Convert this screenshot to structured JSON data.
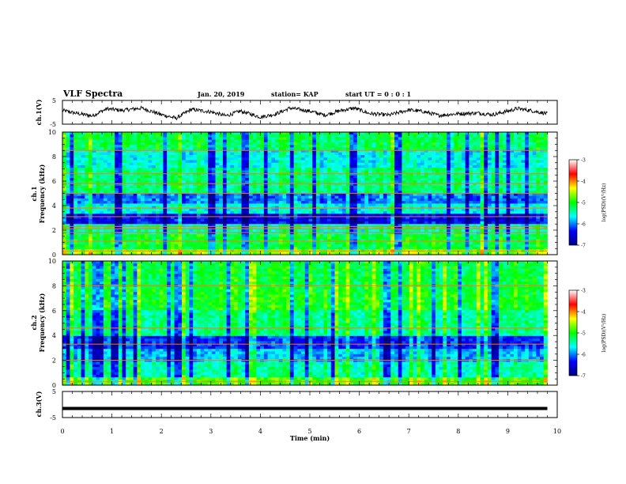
{
  "header": {
    "title": "VLF Spectra",
    "date": "Jan. 20, 2019",
    "station": "station= KAP",
    "start": "start UT =  0 : 0 : 1"
  },
  "chart_data": [
    {
      "type": "line",
      "name": "ch1-waveform",
      "ylabel": "ch.1(V)",
      "ylim": [
        -5,
        5
      ],
      "yticks": [
        "5",
        "-5"
      ],
      "xlim": [
        0,
        10
      ],
      "color": "#000000",
      "trend": [
        [
          0.0,
          0.8
        ],
        [
          0.3,
          -0.5
        ],
        [
          0.6,
          -1.5
        ],
        [
          0.9,
          1.5
        ],
        [
          1.2,
          0.8
        ],
        [
          1.6,
          1.8
        ],
        [
          2.0,
          -1.0
        ],
        [
          2.3,
          -2.5
        ],
        [
          2.6,
          1.2
        ],
        [
          3.0,
          0.2
        ],
        [
          3.3,
          -1.5
        ],
        [
          3.6,
          0.5
        ],
        [
          4.0,
          -2.0
        ],
        [
          4.3,
          -0.8
        ],
        [
          4.6,
          1.8
        ],
        [
          5.0,
          0.5
        ],
        [
          5.3,
          -1.2
        ],
        [
          5.6,
          0.6
        ],
        [
          5.9,
          1.8
        ],
        [
          6.2,
          -0.5
        ],
        [
          6.6,
          -1.2
        ],
        [
          7.0,
          1.0
        ],
        [
          7.3,
          0.3
        ],
        [
          7.6,
          -1.3
        ],
        [
          8.0,
          -0.6
        ],
        [
          8.4,
          -0.3
        ],
        [
          8.7,
          -1.0
        ],
        [
          9.0,
          0.5
        ],
        [
          9.2,
          1.6
        ],
        [
          9.5,
          0.6
        ],
        [
          9.8,
          -0.6
        ]
      ]
    },
    {
      "type": "heatmap",
      "name": "ch1-spectrogram",
      "ylabel_line1": "ch.1",
      "ylabel_line2": "Frequency (kHz)",
      "xlim": [
        0,
        9.8
      ],
      "ylim": [
        0,
        10
      ],
      "yticks": [
        "0",
        "2",
        "4",
        "6",
        "8",
        "10"
      ],
      "colorbar": {
        "label": "log(PSD)(V²/Hz)",
        "range": [
          -7,
          -3
        ],
        "ticks": [
          "-3",
          "-4",
          "-5",
          "-6",
          "-7"
        ],
        "colors": [
          "#000080",
          "#0000ff",
          "#00ffff",
          "#00ff00",
          "#ffff00",
          "#ff0000",
          "#ffffff"
        ]
      },
      "bands": [
        {
          "f": [
            0.0,
            0.5
          ],
          "level": -4.6
        },
        {
          "f": [
            0.5,
            1.6
          ],
          "level": -5.1
        },
        {
          "f": [
            1.6,
            2.6
          ],
          "level": -5.4
        },
        {
          "f": [
            2.6,
            3.4
          ],
          "level": -6.4
        },
        {
          "f": [
            3.4,
            4.1
          ],
          "level": -5.6
        },
        {
          "f": [
            4.1,
            5.0
          ],
          "level": -6.0
        },
        {
          "f": [
            5.0,
            7.0
          ],
          "level": -5.3
        },
        {
          "f": [
            7.0,
            8.6
          ],
          "level": -5.6
        },
        {
          "f": [
            8.6,
            10.0
          ],
          "level": -5.2
        }
      ],
      "lines_khz": [
        0.3,
        1.1,
        1.8,
        2.1,
        2.3,
        3.1,
        3.8,
        5.0,
        5.8,
        6.6,
        8.5
      ],
      "notes": [
        "dark vertical streaks (spheric impulses) throughout",
        "orange/red horizontal narrowband lines"
      ]
    },
    {
      "type": "heatmap",
      "name": "ch2-spectrogram",
      "ylabel_line1": "ch.2",
      "ylabel_line2": "Frequency (kHz)",
      "xlim": [
        0,
        9.8
      ],
      "ylim": [
        0,
        10
      ],
      "yticks": [
        "0",
        "2",
        "4",
        "6",
        "8",
        "10"
      ],
      "colorbar": {
        "label": "log(PSD)(V²/Hz)",
        "range": [
          -7,
          -3
        ],
        "ticks": [
          "-3",
          "-4",
          "-5",
          "-6",
          "-7"
        ],
        "colors": [
          "#000080",
          "#0000ff",
          "#00ffff",
          "#00ff00",
          "#ffff00",
          "#ff0000",
          "#ffffff"
        ]
      },
      "bands": [
        {
          "f": [
            0.0,
            0.6
          ],
          "level": -4.8
        },
        {
          "f": [
            0.6,
            1.8
          ],
          "level": -5.4
        },
        {
          "f": [
            1.8,
            3.0
          ],
          "level": -5.8
        },
        {
          "f": [
            3.0,
            4.0
          ],
          "level": -6.2
        },
        {
          "f": [
            4.0,
            6.0
          ],
          "level": -5.3
        },
        {
          "f": [
            6.0,
            8.0
          ],
          "level": -5.0
        },
        {
          "f": [
            8.0,
            10.0
          ],
          "level": -5.1
        }
      ],
      "lines_khz": [
        0.3,
        2.0,
        3.3,
        4.6,
        8.0
      ],
      "notes": [
        "dark vertical streaks throughout",
        "orange/red horizontal lines"
      ]
    },
    {
      "type": "line",
      "name": "ch3-waveform",
      "ylabel": "ch.3(V)",
      "ylim": [
        -5,
        5
      ],
      "yticks": [
        "5",
        "-5"
      ],
      "xlim": [
        0,
        10
      ],
      "color": "#000000",
      "trend": [
        [
          0.0,
          -1.5
        ],
        [
          9.8,
          -1.5
        ]
      ]
    },
    {
      "type": "axis",
      "name": "time-axis",
      "xlabel": "Time (min)",
      "xticks": [
        "0",
        "1",
        "2",
        "3",
        "4",
        "5",
        "6",
        "7",
        "8",
        "9",
        "10"
      ],
      "xlim": [
        0,
        10
      ]
    }
  ]
}
